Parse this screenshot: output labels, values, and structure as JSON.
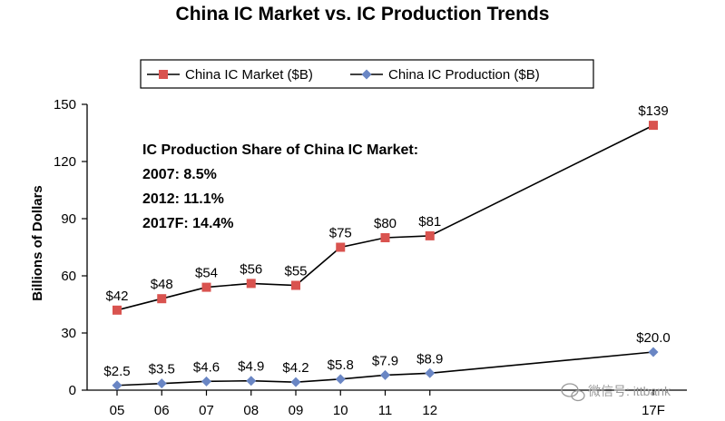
{
  "chart_data": {
    "type": "line",
    "title": "China IC Market vs. IC Production Trends",
    "ylabel": "Billions of Dollars",
    "xlabel": "",
    "categories": [
      "05",
      "06",
      "07",
      "08",
      "09",
      "10",
      "11",
      "12",
      "17F"
    ],
    "x_positions": [
      2005,
      2006,
      2007,
      2008,
      2009,
      2010,
      2011,
      2012,
      2017
    ],
    "ylim": [
      0,
      150
    ],
    "yticks": [
      0,
      30,
      60,
      90,
      120,
      150
    ],
    "grid": false,
    "legend_placement": "top",
    "series": [
      {
        "name": "China IC Market ($B)",
        "color": "#d9534f",
        "marker": "square",
        "values": [
          42,
          48,
          54,
          56,
          55,
          75,
          80,
          81,
          139
        ],
        "labels": [
          "$42",
          "$48",
          "$54",
          "$56",
          "$55",
          "$75",
          "$80",
          "$81",
          "$139"
        ]
      },
      {
        "name": "China IC Production ($B)",
        "color": "#6a86c4",
        "marker": "diamond",
        "values": [
          2.5,
          3.5,
          4.6,
          4.9,
          4.2,
          5.8,
          7.9,
          8.9,
          20.0
        ],
        "labels": [
          "$2.5",
          "$3.5",
          "$4.6",
          "$4.9",
          "$4.2",
          "$5.8",
          "$7.9",
          "$8.9",
          "$20.0"
        ]
      }
    ],
    "annotation": {
      "lines": [
        "IC Production Share of China IC Market:",
        "2007: 8.5%",
        "2012: 11.1%",
        "2017F: 14.4%"
      ]
    }
  },
  "watermark": "微信号: ittbank"
}
